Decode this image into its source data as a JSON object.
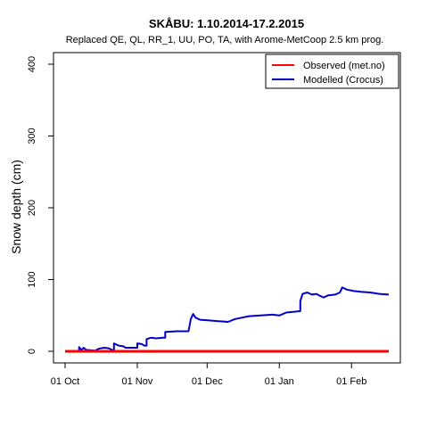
{
  "chart_data": {
    "type": "line",
    "title": "SKÅBU: 1.10.2014-17.2.2015",
    "subtitle": "Replaced QE, QL, RR_1, UU, PO, TA,  with Arome-MetCoop 2.5 km prog.",
    "xlabel": "",
    "ylabel": "Snow depth (cm)",
    "xlim": [
      "2014-10-01",
      "2015-02-17"
    ],
    "ylim": [
      0,
      400
    ],
    "y_ticks": [
      0,
      100,
      200,
      300,
      400
    ],
    "x_ticks": [
      {
        "date": "2014-10-01",
        "label": "01 Oct"
      },
      {
        "date": "2014-11-01",
        "label": "01 Nov"
      },
      {
        "date": "2014-12-01",
        "label": "01 Dec"
      },
      {
        "date": "2015-01-01",
        "label": "01 Jan"
      },
      {
        "date": "2015-02-01",
        "label": "01 Feb"
      }
    ],
    "grid": false,
    "legend_position": "top-right",
    "series": [
      {
        "name": "Observed (met.no)",
        "color": "#ff0000",
        "points": [
          [
            "2014-10-01",
            0
          ],
          [
            "2015-02-17",
            0
          ]
        ]
      },
      {
        "name": "Modelled (Crocus)",
        "color": "#0000cc",
        "points": [
          [
            "2014-10-01",
            0
          ],
          [
            "2014-10-07",
            0
          ],
          [
            "2014-10-07",
            6
          ],
          [
            "2014-10-08",
            2
          ],
          [
            "2014-10-09",
            5
          ],
          [
            "2014-10-10",
            2
          ],
          [
            "2014-10-14",
            1
          ],
          [
            "2014-10-15",
            3
          ],
          [
            "2014-10-16",
            4
          ],
          [
            "2014-10-18",
            5
          ],
          [
            "2014-10-20",
            4
          ],
          [
            "2014-10-21",
            2
          ],
          [
            "2014-10-22",
            2
          ],
          [
            "2014-10-22",
            11
          ],
          [
            "2014-10-24",
            8
          ],
          [
            "2014-10-26",
            7
          ],
          [
            "2014-10-27",
            5
          ],
          [
            "2014-11-01",
            5
          ],
          [
            "2014-11-01",
            11
          ],
          [
            "2014-11-03",
            10
          ],
          [
            "2014-11-04",
            8
          ],
          [
            "2014-11-05",
            8
          ],
          [
            "2014-11-05",
            17
          ],
          [
            "2014-11-07",
            19
          ],
          [
            "2014-11-09",
            18
          ],
          [
            "2014-11-12",
            19
          ],
          [
            "2014-11-13",
            19
          ],
          [
            "2014-11-13",
            27
          ],
          [
            "2014-11-18",
            28
          ],
          [
            "2014-11-23",
            28
          ],
          [
            "2014-11-24",
            45
          ],
          [
            "2014-11-25",
            52
          ],
          [
            "2014-11-26",
            47
          ],
          [
            "2014-11-28",
            44
          ],
          [
            "2014-12-02",
            43
          ],
          [
            "2014-12-06",
            42
          ],
          [
            "2014-12-10",
            41
          ],
          [
            "2014-12-13",
            45
          ],
          [
            "2014-12-16",
            47
          ],
          [
            "2014-12-19",
            49
          ],
          [
            "2014-12-24",
            50
          ],
          [
            "2014-12-29",
            51
          ],
          [
            "2015-01-01",
            50
          ],
          [
            "2015-01-04",
            54
          ],
          [
            "2015-01-07",
            55
          ],
          [
            "2015-01-10",
            56
          ],
          [
            "2015-01-10",
            70
          ],
          [
            "2015-01-11",
            80
          ],
          [
            "2015-01-13",
            82
          ],
          [
            "2015-01-15",
            79
          ],
          [
            "2015-01-17",
            80
          ],
          [
            "2015-01-18",
            78
          ],
          [
            "2015-01-20",
            75
          ],
          [
            "2015-01-22",
            78
          ],
          [
            "2015-01-25",
            79
          ],
          [
            "2015-01-27",
            82
          ],
          [
            "2015-01-28",
            89
          ],
          [
            "2015-01-30",
            86
          ],
          [
            "2015-02-02",
            84
          ],
          [
            "2015-02-05",
            83
          ],
          [
            "2015-02-09",
            82
          ],
          [
            "2015-02-13",
            80
          ],
          [
            "2015-02-17",
            79
          ]
        ]
      }
    ]
  }
}
